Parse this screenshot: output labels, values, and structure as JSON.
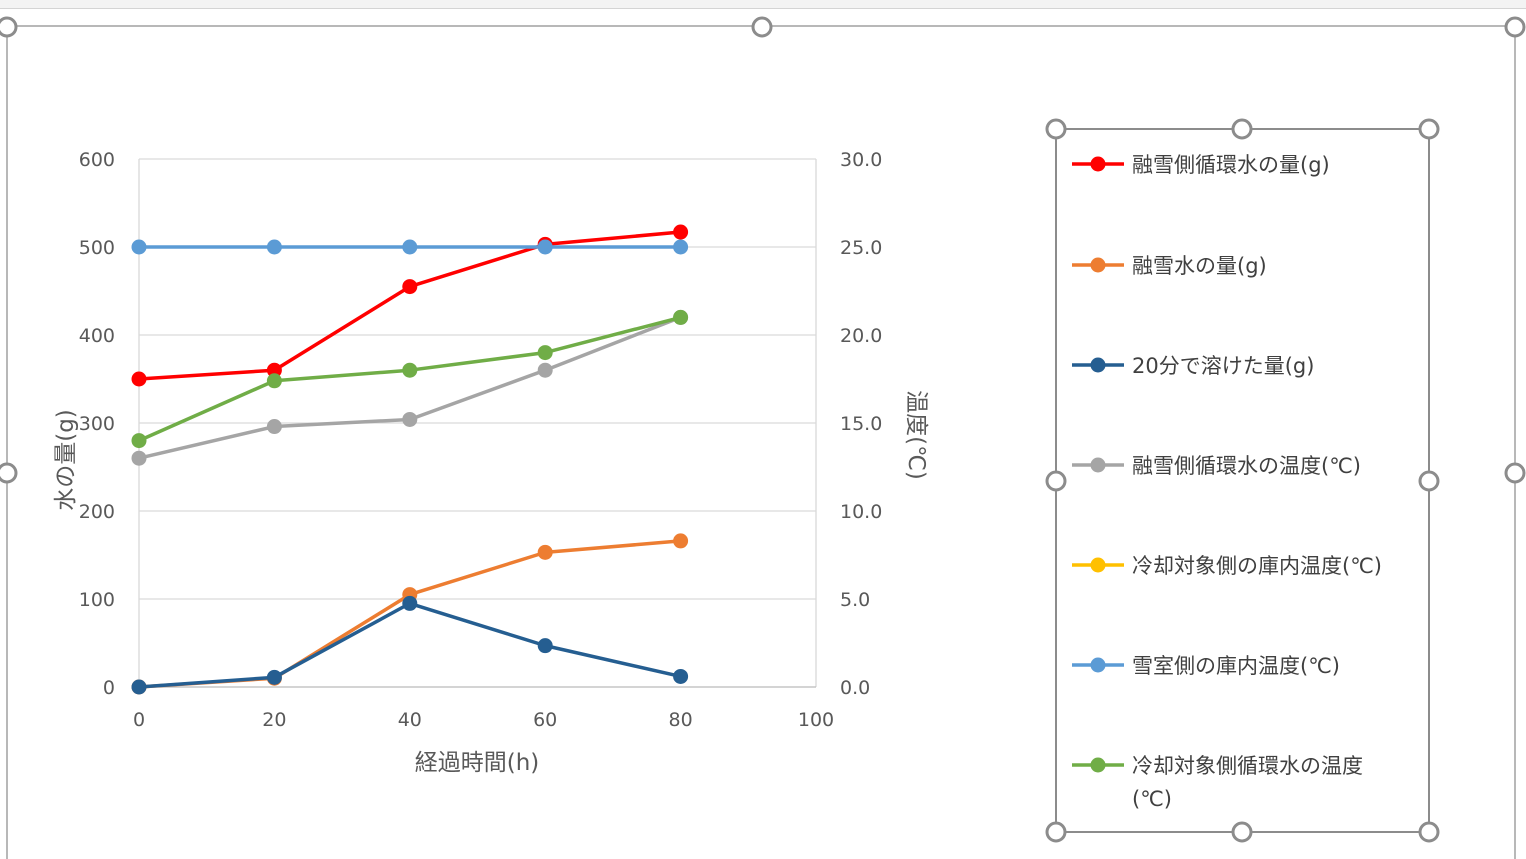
{
  "chart_data": {
    "type": "line",
    "title": "",
    "xlabel": "経過時間(h)",
    "ylabel": "水の量(g)",
    "y2label": "温度(℃)",
    "xlim": [
      0,
      100
    ],
    "ylim": [
      0,
      600
    ],
    "y2lim": [
      0,
      30
    ],
    "x_ticks": [
      "0",
      "20",
      "40",
      "60",
      "80",
      "100"
    ],
    "y_ticks": [
      "0",
      "100",
      "200",
      "300",
      "400",
      "500",
      "600"
    ],
    "y2_ticks": [
      "0.0",
      "5.0",
      "10.0",
      "15.0",
      "20.0",
      "25.0",
      "30.0"
    ],
    "grid": true,
    "legend_position": "right",
    "series": [
      {
        "name": "融雪側循環水の量(g)",
        "axis": "left",
        "color": "#ff0000",
        "x": [
          0,
          20,
          40,
          60,
          80
        ],
        "y": [
          350,
          360,
          455,
          503,
          517
        ]
      },
      {
        "name": "融雪水の量(g)",
        "axis": "left",
        "color": "#ed7d31",
        "x": [
          0,
          20,
          40,
          60,
          80
        ],
        "y": [
          0,
          10,
          105,
          153,
          166
        ]
      },
      {
        "name": "20分で溶けた量(g)",
        "axis": "left",
        "color": "#255e91",
        "x": [
          0,
          20,
          40,
          60,
          80
        ],
        "y": [
          0,
          11,
          95,
          47,
          12
        ]
      },
      {
        "name": "融雪側循環水の温度(℃)",
        "axis": "right",
        "color": "#a5a5a5",
        "x": [
          0,
          20,
          40,
          60,
          80
        ],
        "y": [
          13.0,
          14.8,
          15.2,
          18.0,
          21.0
        ]
      },
      {
        "name": "冷却対象側の庫内温度(℃)",
        "axis": "right",
        "color": "#ffc000",
        "x": [],
        "y": []
      },
      {
        "name": "雪室側の庫内温度(℃)",
        "axis": "right",
        "color": "#5b9bd5",
        "x": [
          0,
          20,
          40,
          60,
          80
        ],
        "y": [
          25.0,
          25.0,
          25.0,
          25.0,
          25.0
        ]
      },
      {
        "name": "冷却対象側循環水の温度(℃)",
        "axis": "right",
        "color": "#70ad47",
        "x": [
          0,
          20,
          40,
          60,
          80
        ],
        "y": [
          14.0,
          17.4,
          18.0,
          19.0,
          21.0
        ]
      }
    ]
  }
}
